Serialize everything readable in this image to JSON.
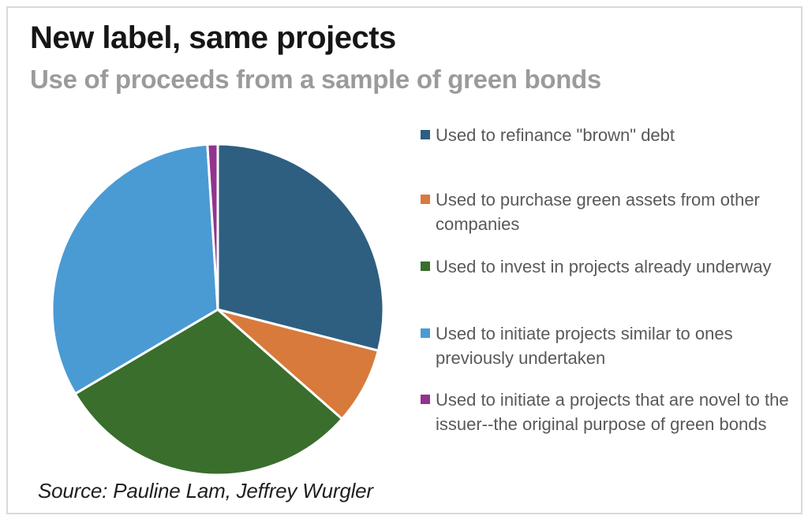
{
  "chart_data": {
    "type": "pie",
    "title": "New label, same projects",
    "subtitle": "Use of proceeds from a sample of green bonds",
    "source": "Source: Pauline Lam, Jeffrey Wurgler",
    "legend_position": "right",
    "start_angle_deg": 0,
    "direction": "clockwise",
    "slice_separator_color": "#ffffff",
    "slices": [
      {
        "label": "Used to refinance \"brown\" debt",
        "value": 29,
        "color": "#2E5F80"
      },
      {
        "label": "Used to purchase green assets from other companies",
        "value": 7.5,
        "color": "#D87A3C"
      },
      {
        "label": "Used to invest in projects already underway",
        "value": 30,
        "color": "#396E2D"
      },
      {
        "label": "Used to initiate projects similar to ones previously undertaken",
        "value": 32.5,
        "color": "#4A9BD3"
      },
      {
        "label": "Used to initiate a projects that are novel to the issuer--the original purpose of green bonds",
        "value": 1,
        "color": "#93338F"
      }
    ]
  },
  "frame": {
    "border_color": "#d9d9d9"
  }
}
